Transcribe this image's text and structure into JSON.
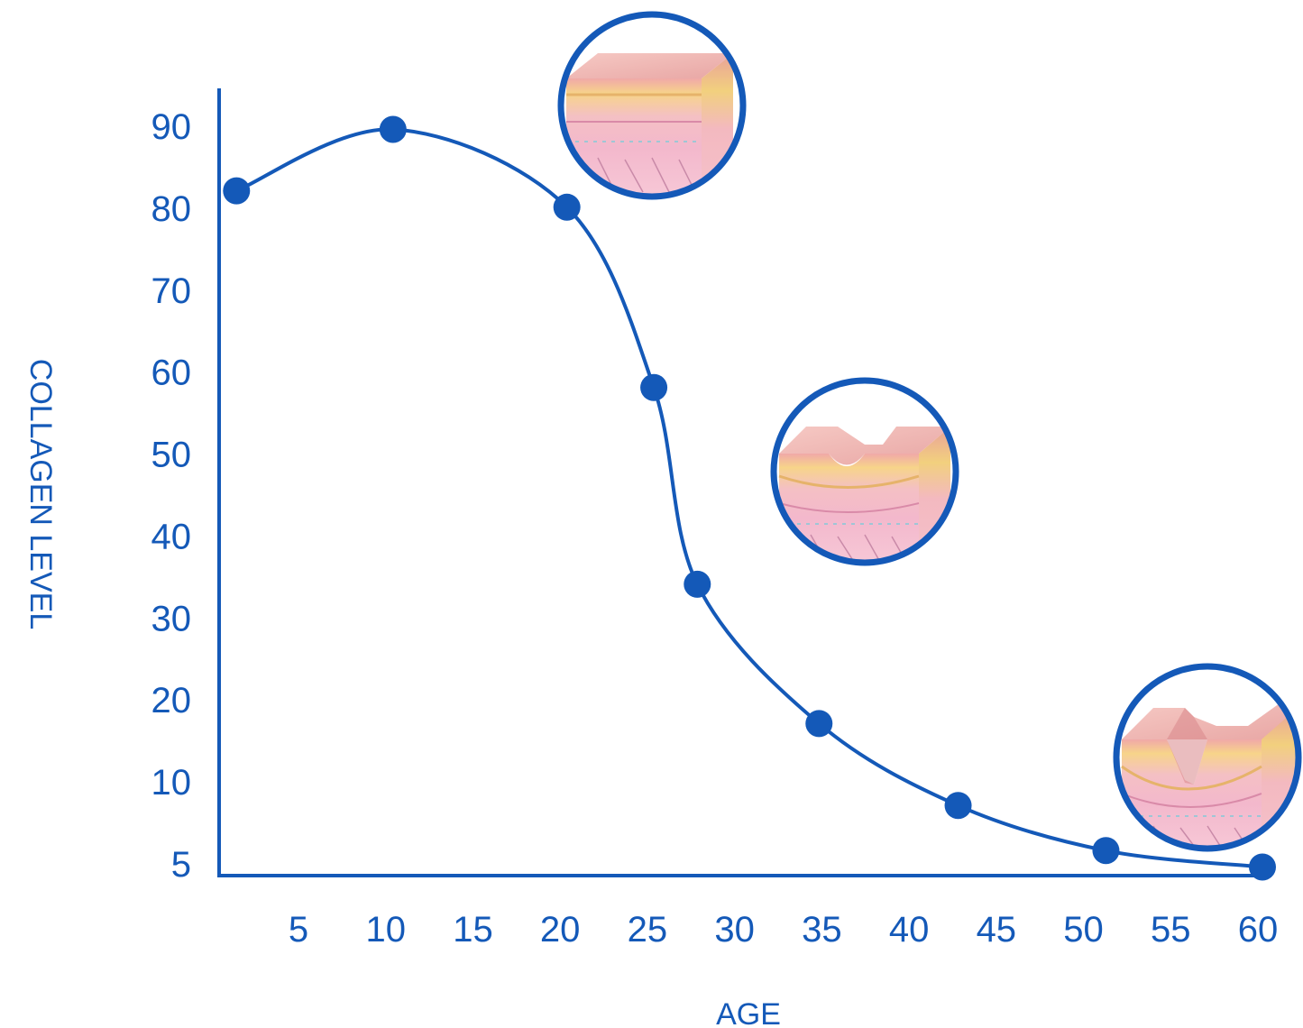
{
  "chart_data": {
    "type": "line",
    "xlabel": "AGE",
    "ylabel": "COLLAGEN LEVEL",
    "x_ticks": [
      5,
      10,
      15,
      20,
      25,
      30,
      35,
      40,
      45,
      50,
      55,
      60
    ],
    "y_ticks": [
      5,
      10,
      20,
      30,
      40,
      50,
      60,
      70,
      80,
      90
    ],
    "xlim": [
      0,
      60
    ],
    "ylim": [
      0,
      90
    ],
    "series": [
      {
        "x": [
          1,
          10,
          20,
          25,
          27.5,
          34.5,
          42.5,
          51,
          60
        ],
        "y": [
          83,
          90.5,
          81,
          59,
          35,
          18,
          8,
          2.5,
          0.5
        ]
      }
    ],
    "grid": false,
    "legend": "none",
    "color": "#1459b8",
    "annotations": [
      "skin-cross-section-smooth-icon",
      "skin-cross-section-shallow-wrinkle-icon",
      "skin-cross-section-deep-wrinkle-icon"
    ]
  }
}
